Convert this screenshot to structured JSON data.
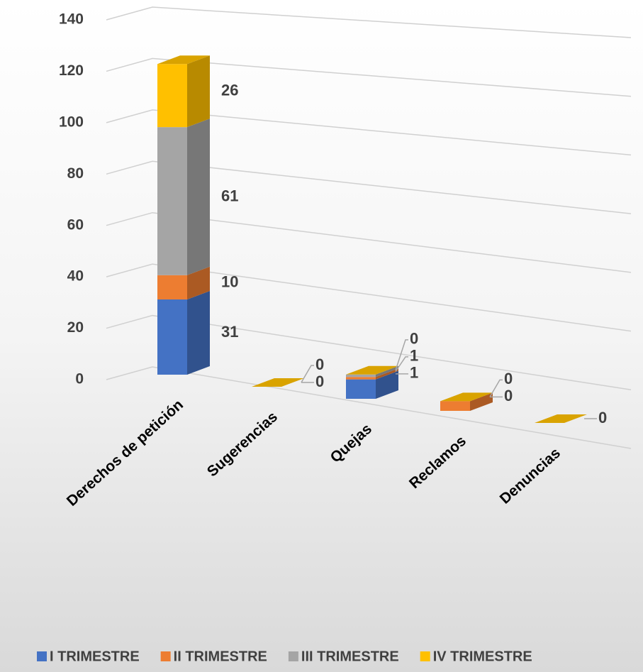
{
  "chart_data": {
    "type": "bar3d",
    "categories": [
      "Derechos de petición",
      "Sugerencias",
      "Quejas",
      "Reclamos",
      "Denuncias"
    ],
    "series": [
      {
        "name": "I TRIMESTRE",
        "color": "#4472c4",
        "values": [
          31,
          0,
          8,
          0,
          0
        ],
        "value_labels": [
          "31",
          null,
          null,
          null,
          null
        ]
      },
      {
        "name": "II TRIMESTRE",
        "color": "#ed7d31",
        "values": [
          10,
          0,
          1,
          4,
          0
        ],
        "value_labels": [
          "10",
          null,
          "1",
          null,
          null
        ]
      },
      {
        "name": "III TRIMESTRE",
        "color": "#a5a5a5",
        "values": [
          61,
          0,
          1,
          0,
          0
        ],
        "value_labels": [
          "61",
          "0",
          "1",
          "0",
          null
        ]
      },
      {
        "name": "IV TRIMESTRE",
        "color": "#ffc000",
        "values": [
          26,
          0,
          0,
          0,
          0
        ],
        "value_labels": [
          "26",
          "0",
          "0",
          "0",
          "0"
        ]
      }
    ],
    "ylim": [
      0,
      140
    ],
    "yticks": [
      0,
      20,
      40,
      60,
      80,
      100,
      120,
      140
    ],
    "grid": true,
    "stacked": true,
    "legend": "bottom"
  }
}
